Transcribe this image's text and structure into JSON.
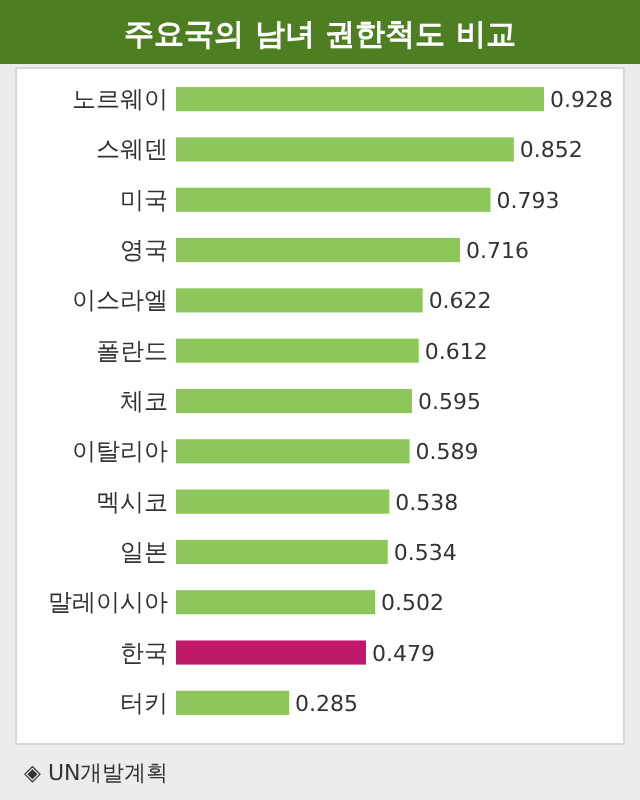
{
  "chart_data": {
    "type": "bar",
    "orientation": "horizontal",
    "title": "주요국의 남녀 권한척도 비교",
    "categories": [
      "노르웨이",
      "스웨덴",
      "미국",
      "영국",
      "이스라엘",
      "폴란드",
      "체코",
      "이탈리아",
      "멕시코",
      "일본",
      "말레이시아",
      "한국",
      "터키"
    ],
    "values": [
      0.928,
      0.852,
      0.793,
      0.716,
      0.622,
      0.612,
      0.595,
      0.589,
      0.538,
      0.534,
      0.502,
      0.479,
      0.285
    ],
    "colors": [
      "#8dc65a",
      "#8dc65a",
      "#8dc65a",
      "#8dc65a",
      "#8dc65a",
      "#8dc65a",
      "#8dc65a",
      "#8dc65a",
      "#8dc65a",
      "#8dc65a",
      "#8dc65a",
      "#c0186a",
      "#8dc65a"
    ],
    "data_labels": true,
    "annotations": [
      "◈ UN개발계획"
    ]
  }
}
